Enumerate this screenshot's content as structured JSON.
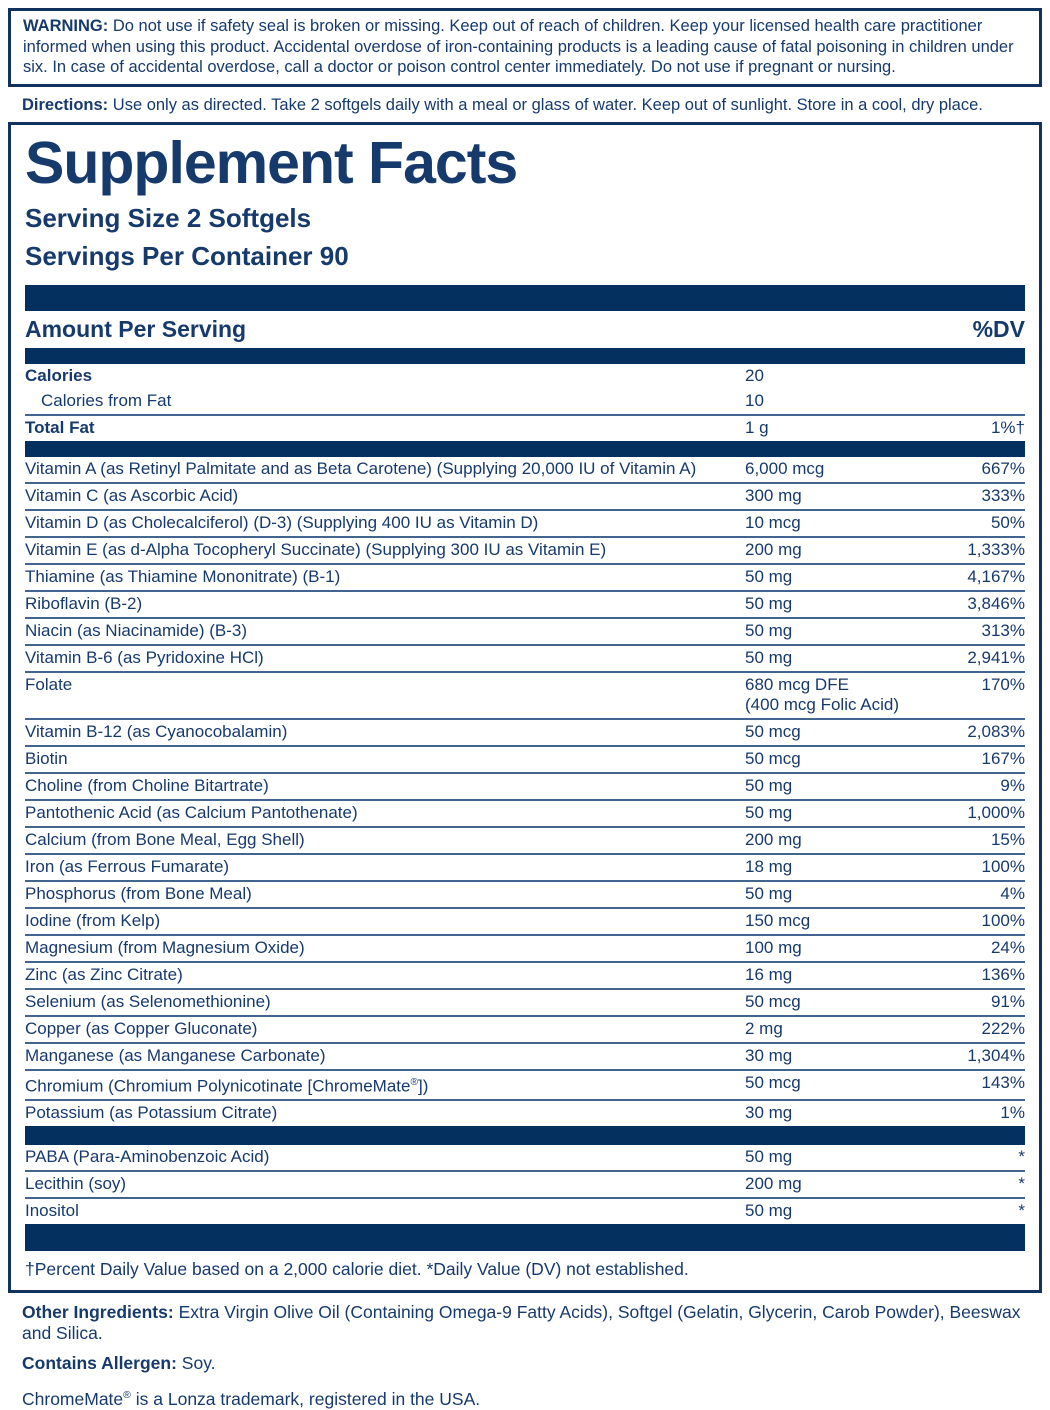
{
  "colors": {
    "text_navy": "#173a6d",
    "bar_navy": "#04305f",
    "border_navy": "#11315f",
    "separator_blue": "#41658f",
    "background": "#ffffff"
  },
  "warning": {
    "label": "WARNING:",
    "text": "Do not use if safety seal is broken or missing. Keep out of reach of children. Keep your licensed health care practitioner informed when using this product. Accidental overdose of iron-containing products is a leading cause of fatal poisoning in children under six. In case of accidental overdose, call a doctor or poison control center immediately. Do not use if pregnant or nursing."
  },
  "directions": {
    "label": "Directions:",
    "text": "Use only as directed. Take 2 softgels daily with a meal or glass of water. Keep out of sunlight. Store in a cool, dry place."
  },
  "panel": {
    "title": "Supplement Facts",
    "serving_size": "Serving Size 2 Softgels",
    "servings_per_container": "Servings Per Container 90",
    "header": {
      "amount": "Amount Per Serving",
      "dv": "%DV"
    },
    "calorie_rows": [
      {
        "name": "Calories",
        "amount": "20",
        "dv": "",
        "bold": true
      },
      {
        "name": "Calories from Fat",
        "amount": "10",
        "dv": "",
        "indent": true
      },
      {
        "name": "Total Fat",
        "amount": "1 g",
        "dv": "1%†",
        "bold": true
      }
    ],
    "nutrient_rows": [
      {
        "name": "Vitamin A (as Retinyl Palmitate and as Beta Carotene) (Supplying 20,000 IU of Vitamin A)",
        "amount": "6,000 mcg",
        "dv": "667%"
      },
      {
        "name": "Vitamin C (as Ascorbic Acid)",
        "amount": "300 mg",
        "dv": "333%"
      },
      {
        "name": "Vitamin D (as Cholecalciferol) (D-3) (Supplying 400 IU as Vitamin D)",
        "amount": "10 mcg",
        "dv": "50%"
      },
      {
        "name": "Vitamin E (as d-Alpha Tocopheryl Succinate) (Supplying 300 IU as Vitamin E)",
        "amount": "200 mg",
        "dv": "1,333%"
      },
      {
        "name": "Thiamine (as Thiamine Mononitrate) (B-1)",
        "amount": "50 mg",
        "dv": "4,167%"
      },
      {
        "name": "Riboflavin (B-2)",
        "amount": "50 mg",
        "dv": "3,846%"
      },
      {
        "name": "Niacin (as Niacinamide) (B-3)",
        "amount": "50 mg",
        "dv": "313%"
      },
      {
        "name": "Vitamin B-6 (as Pyridoxine HCl)",
        "amount": "50 mg",
        "dv": "2,941%"
      },
      {
        "name": "Folate",
        "amount": "680 mcg DFE",
        "amount_line2": "(400 mcg Folic Acid)",
        "dv": "170%"
      },
      {
        "name": "Vitamin B-12 (as Cyanocobalamin)",
        "amount": "50 mcg",
        "dv": "2,083%"
      },
      {
        "name": "Biotin",
        "amount": "50 mcg",
        "dv": "167%"
      },
      {
        "name": "Choline (from Choline Bitartrate)",
        "amount": "50 mg",
        "dv": "9%"
      },
      {
        "name": "Pantothenic Acid (as Calcium Pantothenate)",
        "amount": "50 mg",
        "dv": "1,000%"
      },
      {
        "name": "Calcium (from Bone Meal, Egg Shell)",
        "amount": "200 mg",
        "dv": "15%"
      },
      {
        "name": "Iron (as Ferrous Fumarate)",
        "amount": "18 mg",
        "dv": "100%"
      },
      {
        "name": "Phosphorus (from Bone Meal)",
        "amount": "50 mg",
        "dv": "4%"
      },
      {
        "name": "Iodine (from Kelp)",
        "amount": "150 mcg",
        "dv": "100%"
      },
      {
        "name": "Magnesium (from Magnesium Oxide)",
        "amount": "100 mg",
        "dv": "24%"
      },
      {
        "name": "Zinc (as Zinc Citrate)",
        "amount": "16 mg",
        "dv": "136%"
      },
      {
        "name": "Selenium (as Selenomethionine)",
        "amount": "50 mcg",
        "dv": "91%"
      },
      {
        "name": "Copper (as Copper Gluconate)",
        "amount": "2 mg",
        "dv": "222%"
      },
      {
        "name": "Manganese (as Manganese Carbonate)",
        "amount": "30 mg",
        "dv": "1,304%"
      },
      {
        "name": "Chromium (Chromium Polynicotinate [ChromeMate®])",
        "amount": "50 mcg",
        "dv": "143%"
      },
      {
        "name": "Potassium (as Potassium Citrate)",
        "amount": "30 mg",
        "dv": "1%"
      }
    ],
    "extra_rows": [
      {
        "name": "PABA (Para-Aminobenzoic Acid)",
        "amount": "50 mg",
        "dv": "*"
      },
      {
        "name": "Lecithin (soy)",
        "amount": "200 mg",
        "dv": "*"
      },
      {
        "name": "Inositol",
        "amount": "50 mg",
        "dv": "*"
      }
    ],
    "footnote": "†Percent Daily Value based on a 2,000 calorie diet. *Daily Value (DV) not established."
  },
  "footer": {
    "other_ingredients_label": "Other Ingredients:",
    "other_ingredients": "Extra Virgin Olive Oil (Containing Omega-9 Fatty Acids), Softgel (Gelatin, Glycerin, Carob Powder), Beeswax and Silica.",
    "allergen_label": "Contains Allergen:",
    "allergen": "Soy.",
    "trademark": "ChromeMate® is a Lonza trademark, registered in the USA."
  }
}
